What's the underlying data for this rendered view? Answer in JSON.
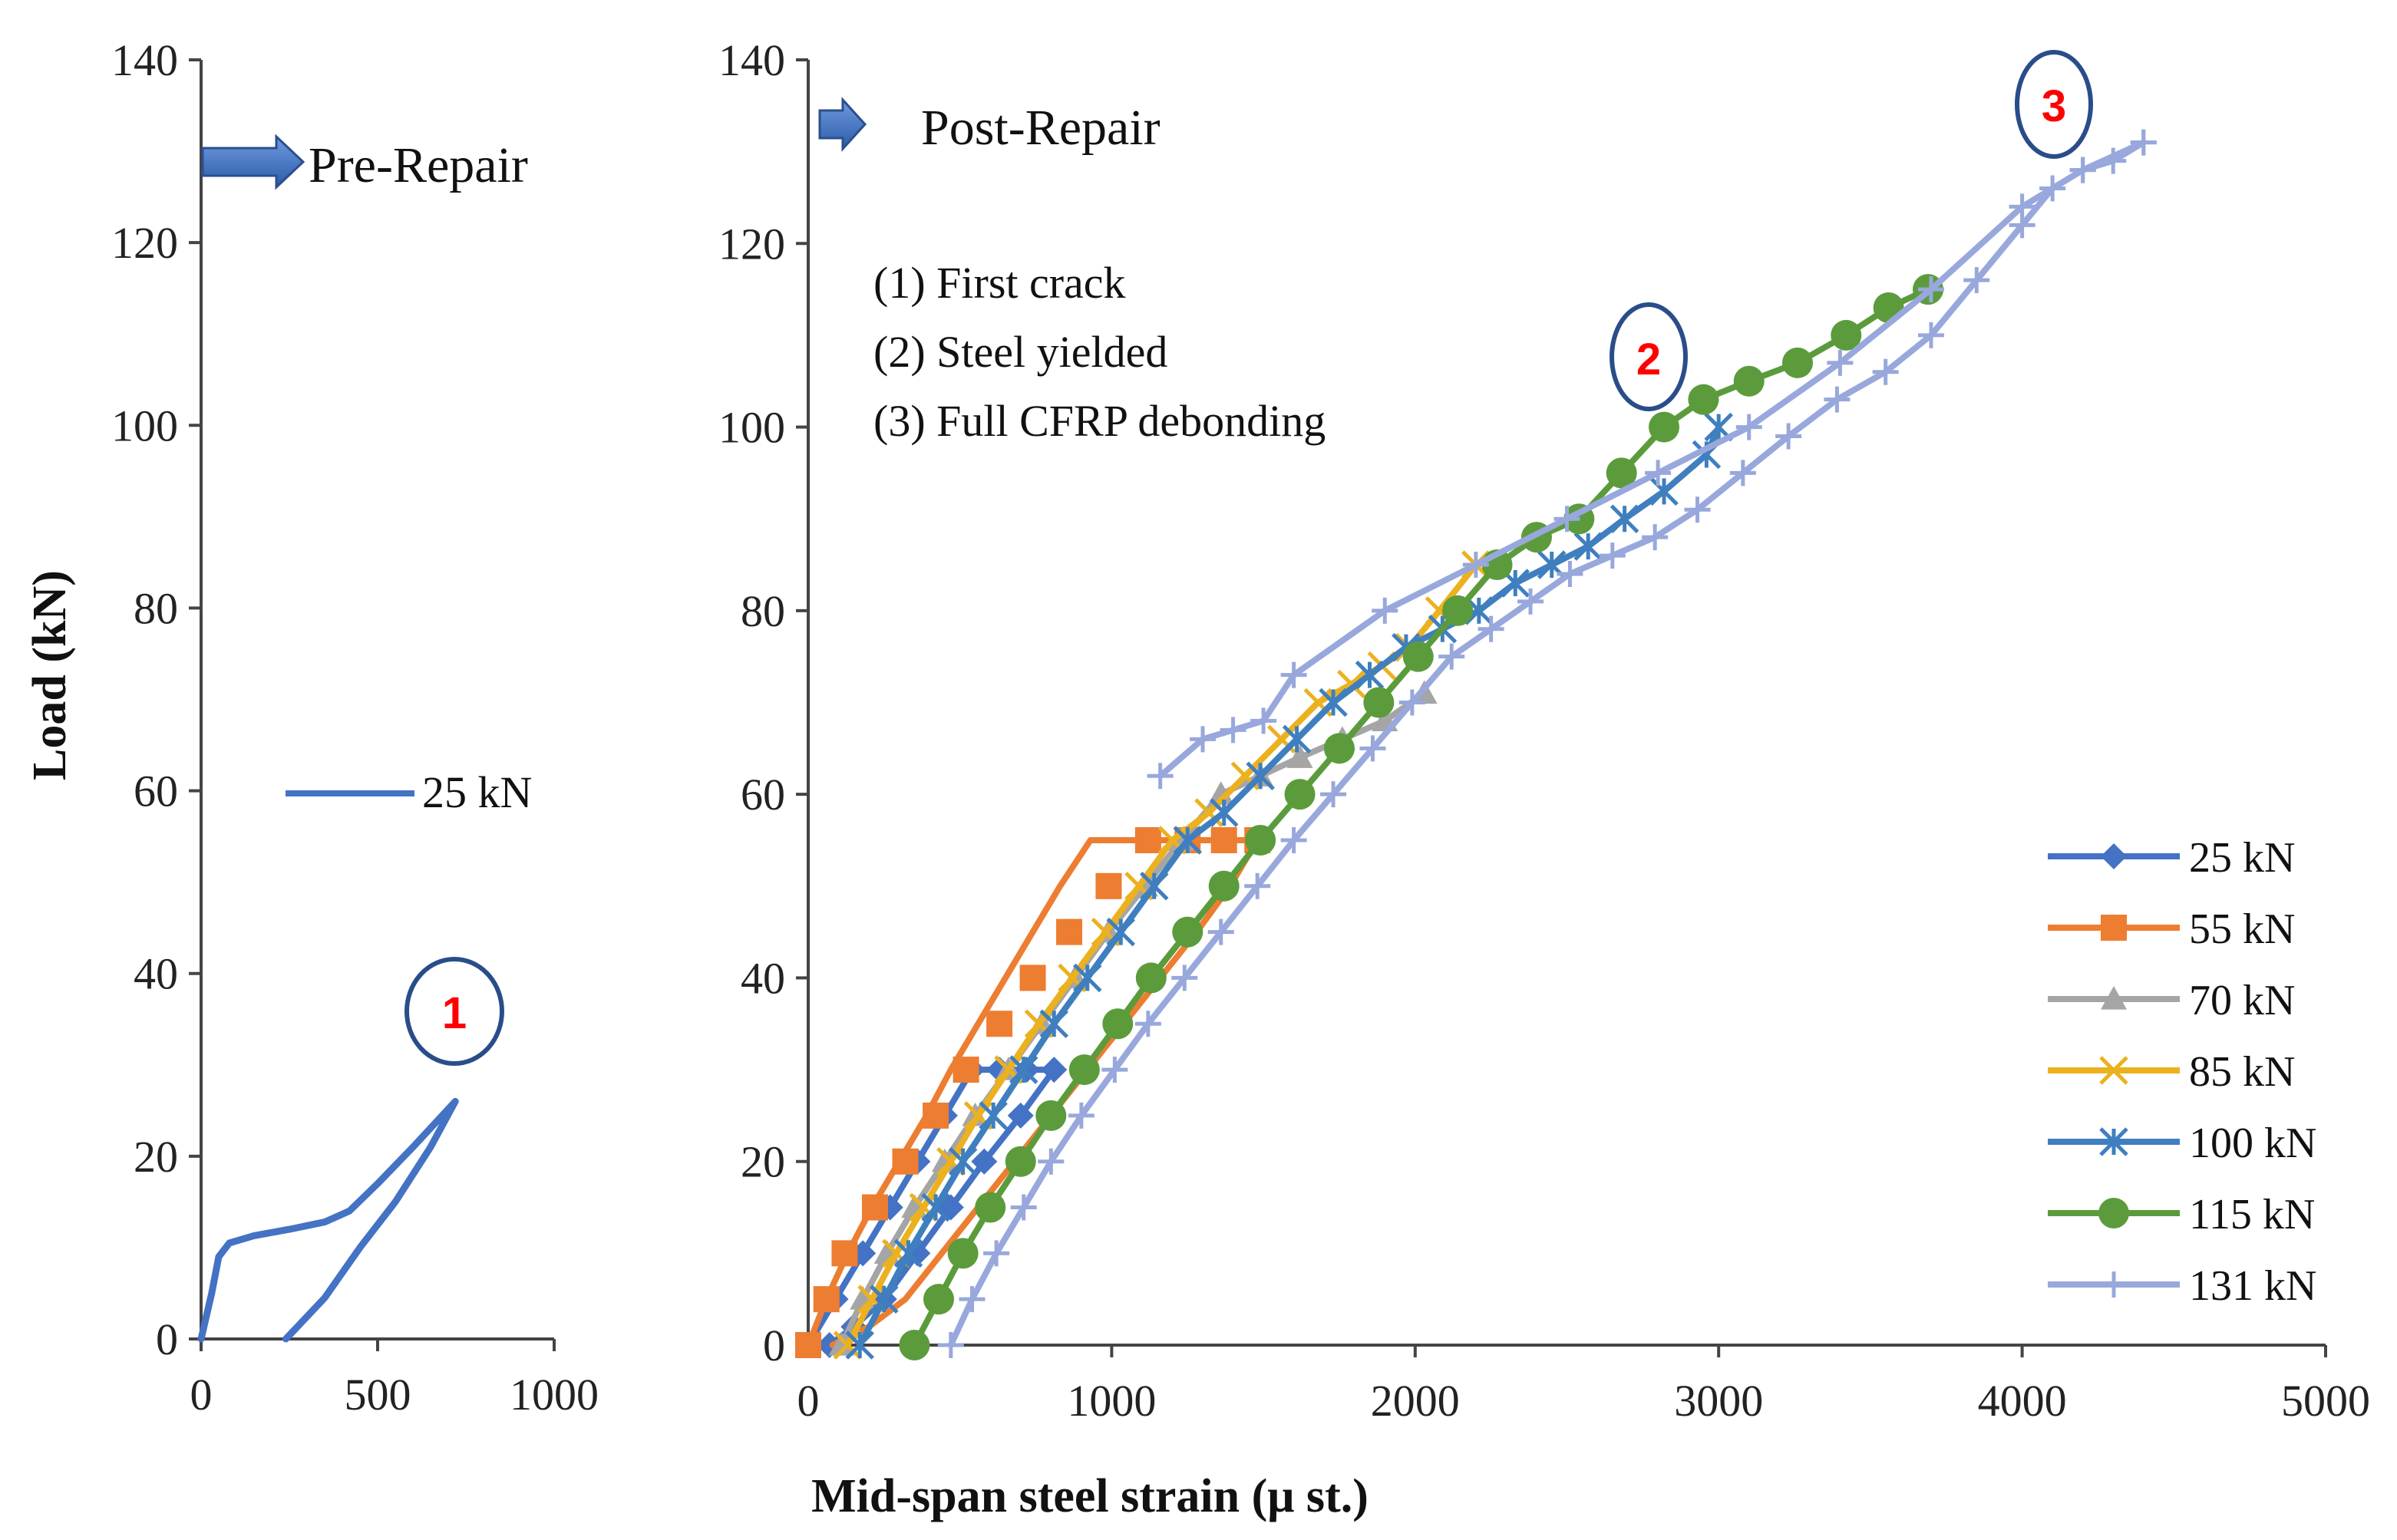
{
  "chart_data": [
    {
      "panel": "pre-repair",
      "type": "line",
      "label": "Pre-Repair",
      "ylabel": "Load  (kN)",
      "xlim": [
        0,
        1000
      ],
      "ylim": [
        0,
        140
      ],
      "xticks": [
        0,
        500,
        1000
      ],
      "yticks": [
        0,
        20,
        40,
        60,
        80,
        100,
        120,
        140
      ],
      "legend": "25 kN",
      "series": [
        {
          "name": "25 kN",
          "color": "#4472c4",
          "x": [
            0,
            30,
            50,
            80,
            150,
            250,
            350,
            420,
            500,
            600,
            720,
            650,
            550,
            450,
            350,
            240
          ],
          "y": [
            0,
            5,
            9,
            10.5,
            11.3,
            12,
            12.8,
            14,
            17,
            21,
            26,
            21,
            15,
            10,
            4.5,
            0
          ]
        }
      ],
      "annotation": {
        "text": "1",
        "x": 720,
        "y": 26
      }
    },
    {
      "panel": "post-repair",
      "type": "line",
      "label": "Post-Repair",
      "xlabel": "Mid-span steel strain  (μ st.)",
      "xlim": [
        0,
        5000
      ],
      "ylim": [
        0,
        140
      ],
      "xticks": [
        0,
        1000,
        2000,
        3000,
        4000,
        5000
      ],
      "yticks": [
        0,
        20,
        40,
        60,
        80,
        100,
        120,
        140
      ],
      "notes": [
        "(1) First crack",
        "(2) Steel yielded",
        "(3) Full CFRP debonding"
      ],
      "annotations": [
        {
          "text": "2",
          "x": 2780,
          "y": 108
        },
        {
          "text": "3",
          "x": 4100,
          "y": 134
        }
      ],
      "series": [
        {
          "name": "25 kN",
          "color": "#4472c4",
          "marker": "diamond",
          "x": [
            0,
            90,
            180,
            270,
            360,
            450,
            540,
            630,
            720,
            810,
            700,
            580,
            470,
            360,
            250,
            150,
            70
          ],
          "y": [
            0,
            5,
            10,
            15,
            20,
            25,
            30,
            30,
            30,
            30,
            25,
            20,
            15,
            10,
            5,
            2,
            0
          ]
        },
        {
          "name": "55 kN",
          "color": "#ed7d31",
          "marker": "square",
          "x": [
            0,
            60,
            130,
            210,
            300,
            390,
            470,
            560,
            650,
            740,
            830,
            930,
            1030,
            1140,
            1250,
            1380,
            1480,
            1390,
            1280,
            1160,
            1040,
            920,
            800,
            680,
            560,
            440,
            320,
            200,
            80
          ],
          "y": [
            0,
            5,
            10,
            15,
            20,
            25,
            30,
            35,
            40,
            45,
            50,
            55,
            55,
            55,
            55,
            55,
            55,
            50,
            45,
            40,
            35,
            30,
            25,
            20,
            15,
            10,
            5,
            2,
            0
          ],
          "show_x": [
            0,
            60,
            120,
            220,
            320,
            420,
            520,
            630,
            740,
            860,
            990,
            1120,
            1250,
            1370,
            1480
          ],
          "show_y": [
            0,
            5,
            10,
            15,
            20,
            25,
            30,
            35,
            40,
            45,
            50,
            55,
            55,
            55,
            55
          ]
        },
        {
          "name": "70 kN",
          "color": "#a5a5a5",
          "marker": "triangle",
          "x": [
            110,
            180,
            260,
            350,
            450,
            550,
            660,
            770,
            880,
            990,
            1110,
            1230,
            1360,
            1490,
            1620,
            1760,
            1900,
            2030
          ],
          "y": [
            0,
            5,
            10,
            15,
            20,
            25,
            30,
            35,
            40,
            45,
            50,
            55,
            60,
            62,
            64,
            66,
            68,
            71
          ]
        },
        {
          "name": "85 kN",
          "color": "#ecb11f",
          "marker": "x",
          "x": [
            130,
            210,
            290,
            380,
            470,
            560,
            660,
            760,
            870,
            980,
            1090,
            1200,
            1320,
            1440,
            1560,
            1680,
            1790,
            1890,
            1980,
            2080,
            2200
          ],
          "y": [
            0,
            5,
            10,
            15,
            20,
            25,
            30,
            35,
            40,
            45,
            50,
            55,
            58,
            62,
            66,
            70,
            72,
            74,
            76,
            80,
            85
          ]
        },
        {
          "name": "100 kN",
          "color": "#3f7fbf",
          "marker": "star",
          "x": [
            170,
            250,
            330,
            420,
            510,
            610,
            710,
            810,
            920,
            1030,
            1140,
            1250,
            1370,
            1490,
            1610,
            1730,
            1850,
            1970,
            2090,
            2210,
            2330,
            2450,
            2570,
            2690,
            2820,
            2960,
            3000
          ],
          "y": [
            0,
            5,
            10,
            15,
            20,
            25,
            30,
            35,
            40,
            45,
            50,
            55,
            58,
            62,
            66,
            70,
            73,
            76,
            78,
            80,
            83,
            85,
            87,
            90,
            93,
            97,
            100
          ]
        },
        {
          "name": "115 kN",
          "color": "#5b9b3c",
          "marker": "circle",
          "x": [
            350,
            430,
            510,
            600,
            700,
            800,
            910,
            1020,
            1130,
            1250,
            1370,
            1490,
            1620,
            1750,
            1880,
            2010,
            2140,
            2270,
            2400,
            2540,
            2680,
            2820,
            2950,
            3100,
            3260,
            3420,
            3560,
            3690
          ],
          "y": [
            0,
            5,
            10,
            15,
            20,
            25,
            30,
            35,
            40,
            45,
            50,
            55,
            60,
            65,
            70,
            75,
            80,
            85,
            88,
            90,
            95,
            100,
            103,
            105,
            107,
            110,
            113,
            115
          ]
        },
        {
          "name": "131 kN",
          "color": "#98a8dc",
          "marker": "plus",
          "x": [
            470,
            540,
            620,
            710,
            800,
            900,
            1010,
            1120,
            1240,
            1360,
            1480,
            1600,
            1730,
            1860,
            1990,
            2120,
            2250,
            2380,
            2510,
            2650,
            2790,
            2930,
            3080,
            3230,
            3390,
            3550,
            3700,
            3850,
            4000,
            4100,
            4200,
            4300,
            4400
          ],
          "y": [
            0,
            5,
            10,
            15,
            20,
            25,
            30,
            35,
            40,
            45,
            50,
            55,
            60,
            65,
            70,
            75,
            78,
            81,
            84,
            86,
            88,
            91,
            95,
            99,
            103,
            106,
            110,
            116,
            122,
            126,
            128,
            129,
            131
          ],
          "tail_x": [
            4400,
            4200,
            4000,
            3700,
            3400,
            3100,
            2800,
            2500,
            2200,
            1900,
            1600,
            1500,
            1400,
            1300,
            1160
          ],
          "tail_y": [
            131,
            128,
            124,
            115,
            107,
            100,
            95,
            90,
            85,
            80,
            73,
            68,
            67,
            66,
            62
          ]
        }
      ]
    }
  ]
}
